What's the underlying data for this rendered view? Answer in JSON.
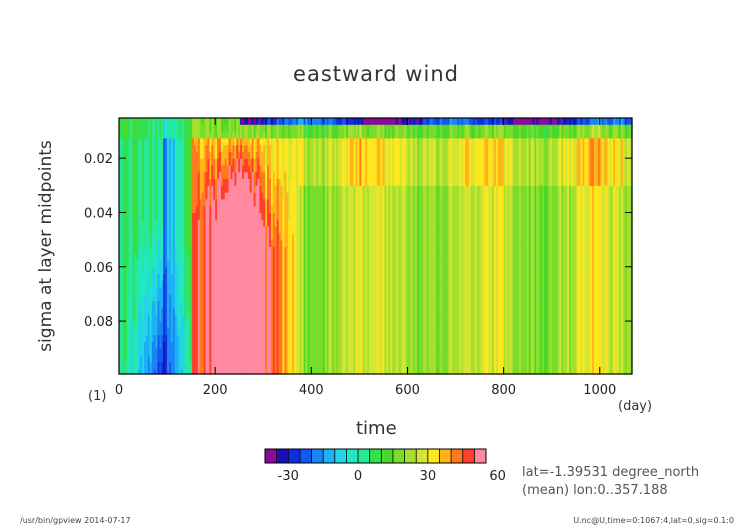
{
  "chart_data": {
    "type": "heatmap",
    "title": "eastward wind",
    "xlabel": "time",
    "ylabel": "sigma at layer midpoints",
    "x_unit": "(day)",
    "y_unit": "(1)",
    "xlim": [
      0,
      1067
    ],
    "ylim": [
      0.0995,
      0.0052
    ],
    "x_ticks": [
      0,
      200,
      400,
      600,
      800,
      1000
    ],
    "x_tick_labels": [
      "0",
      "200",
      "400",
      "600",
      "800",
      "1000"
    ],
    "y_ticks": [
      0.02,
      0.04,
      0.06,
      0.08
    ],
    "y_tick_labels": [
      "0.02",
      "0.04",
      "0.06",
      "0.08"
    ],
    "colorbar": {
      "levels": [
        -40,
        -35,
        -30,
        -25,
        -20,
        -15,
        -10,
        -5,
        0,
        5,
        10,
        15,
        20,
        25,
        30,
        35,
        40,
        45,
        50,
        55,
        60,
        65,
        70,
        75
      ],
      "colors": [
        "#8a0a9a",
        "#1a10b4",
        "#1030e0",
        "#1456f0",
        "#1a84f4",
        "#1eb0f4",
        "#22d4e6",
        "#22e8c0",
        "#28e896",
        "#32e04e",
        "#4cd82a",
        "#78dc2a",
        "#a6e02e",
        "#d4e632",
        "#ffe61e",
        "#ffb41a",
        "#ff7a1c",
        "#ff3f2a",
        "#ff8aa0"
      ],
      "tick_values": [
        -30,
        0,
        30,
        60
      ],
      "tick_labels": [
        "-30",
        "0",
        "30",
        "60"
      ]
    },
    "annotations": {
      "lat": "lat=-1.39531 degree_north",
      "mean": "(mean) lon:0..357.188"
    },
    "grid": false,
    "legend": "colorbar-bottom"
  },
  "footer": {
    "left": "/usr/bin/gpview  2014-07-17",
    "right": "U.nc@U,time=0:1067:4,lat=0,sig=0.1:0"
  }
}
